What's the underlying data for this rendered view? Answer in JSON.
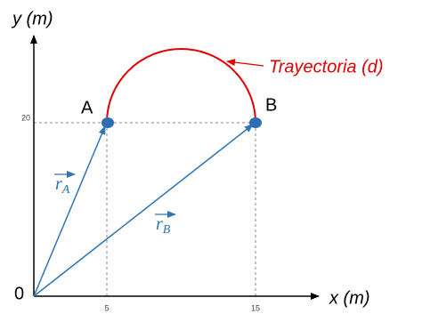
{
  "axes": {
    "y_label": "y (m)",
    "x_label": "x (m)",
    "origin": "0",
    "x_ticks": [
      5,
      15
    ],
    "y_ticks": [
      20
    ]
  },
  "points": [
    {
      "label": "A"
    },
    {
      "label": "B"
    }
  ],
  "vectors": [
    {
      "symbol": "r",
      "subscript": "A"
    },
    {
      "symbol": "r",
      "subscript": "B"
    }
  ],
  "trajectory_label": "Trayectoria (d)"
}
